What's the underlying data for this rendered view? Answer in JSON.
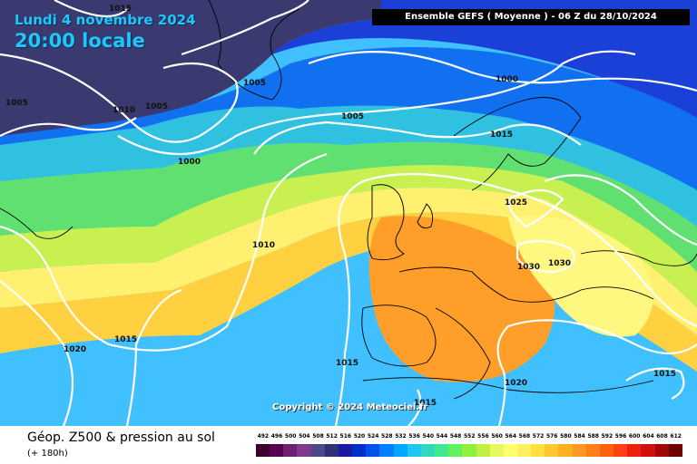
{
  "header": {
    "date": "Lundi 4 novembre 2024",
    "time": "20:00 locale",
    "run_info": "Ensemble GEFS  ( Moyenne )  -  06 Z du 28/10/2024"
  },
  "copyright": "Copyright © 2024 Meteociel.fr",
  "footer": {
    "title": "Géop. Z500 & pression au sol",
    "lead": "(+ 180h)"
  },
  "isobar_labels": [
    "1015",
    "1005",
    "1010",
    "1005",
    "1005",
    "1000",
    "1000",
    "1005",
    "1015",
    "1025",
    "1010",
    "1030",
    "1030",
    "1020",
    "1015",
    "1015",
    "1015",
    "1020",
    "1015"
  ],
  "color_scale": {
    "values": [
      "492",
      "496",
      "500",
      "504",
      "508",
      "512",
      "516",
      "520",
      "524",
      "528",
      "532",
      "536",
      "540",
      "544",
      "548",
      "552",
      "556",
      "560",
      "564",
      "568",
      "572",
      "576",
      "580",
      "584",
      "588",
      "592",
      "596",
      "600",
      "604",
      "608",
      "612"
    ],
    "colors": [
      "#3a0030",
      "#5a0050",
      "#702070",
      "#803a8a",
      "#4a4a8a",
      "#30307a",
      "#1a1aa0",
      "#0030c8",
      "#0050f0",
      "#0080ff",
      "#00a8ff",
      "#20c8f0",
      "#30d8c0",
      "#40e890",
      "#60f060",
      "#90f040",
      "#c0f040",
      "#e8f860",
      "#ffff70",
      "#fff060",
      "#ffe040",
      "#ffc830",
      "#ffb020",
      "#ff9820",
      "#ff8018",
      "#ff6010",
      "#ff4010",
      "#f02010",
      "#d01010",
      "#a00808",
      "#700000"
    ]
  }
}
